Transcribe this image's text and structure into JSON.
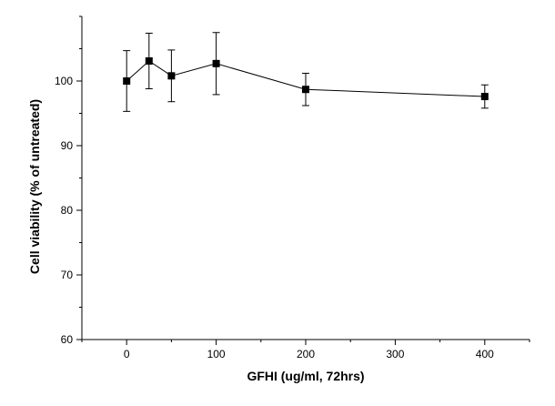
{
  "chart_data": {
    "type": "line",
    "title": "",
    "xlabel": "GFHI (ug/ml, 72hrs)",
    "ylabel": "Cell viability (% of untreated)",
    "xlim": [
      -50,
      450
    ],
    "ylim": [
      60,
      110
    ],
    "x_ticks": [
      0,
      100,
      200,
      300,
      400
    ],
    "y_ticks": [
      60,
      70,
      80,
      90,
      100
    ],
    "grid": false,
    "legend": "none",
    "marker": "square",
    "color": "#000000",
    "series": [
      {
        "x": [
          0,
          25,
          50,
          100,
          200,
          400
        ],
        "y": [
          100.0,
          103.1,
          100.8,
          102.7,
          98.7,
          97.6
        ],
        "error": [
          4.7,
          4.3,
          4.0,
          4.8,
          2.5,
          1.8
        ]
      }
    ]
  }
}
